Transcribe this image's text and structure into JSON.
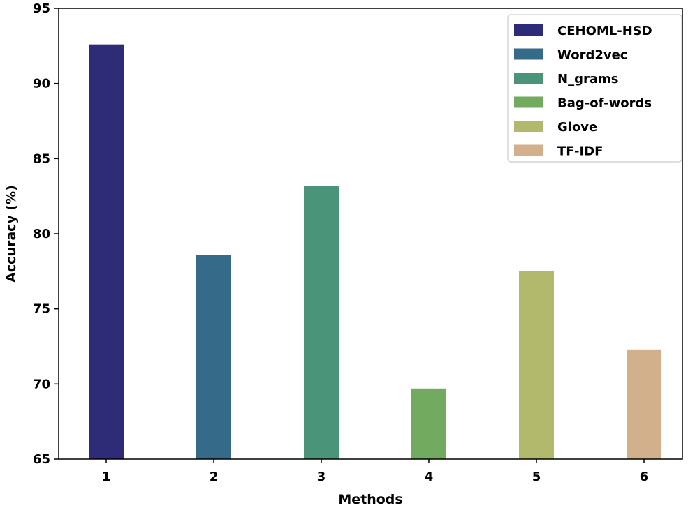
{
  "chart_data": {
    "type": "bar",
    "categories": [
      "1",
      "2",
      "3",
      "4",
      "5",
      "6"
    ],
    "series": [
      {
        "name": "CEHOML-HSD",
        "category": "1",
        "value": 92.6,
        "color": "#2e2b77"
      },
      {
        "name": "Word2vec",
        "category": "2",
        "value": 78.6,
        "color": "#356a89"
      },
      {
        "name": "N_grams",
        "category": "3",
        "value": 83.2,
        "color": "#4a947a"
      },
      {
        "name": "Bag-of-words",
        "category": "4",
        "value": 69.7,
        "color": "#72ab5f"
      },
      {
        "name": "Glove",
        "category": "5",
        "value": 77.5,
        "color": "#b3b96c"
      },
      {
        "name": "TF-IDF",
        "category": "6",
        "value": 72.3,
        "color": "#d3b08c"
      }
    ],
    "xlabel": "Methods",
    "ylabel": "Accuracy (%)",
    "ylim": [
      65,
      95
    ],
    "yticks": [
      "65",
      "70",
      "75",
      "80",
      "85",
      "90",
      "95"
    ],
    "grid": false,
    "legend_position": "top-right"
  }
}
